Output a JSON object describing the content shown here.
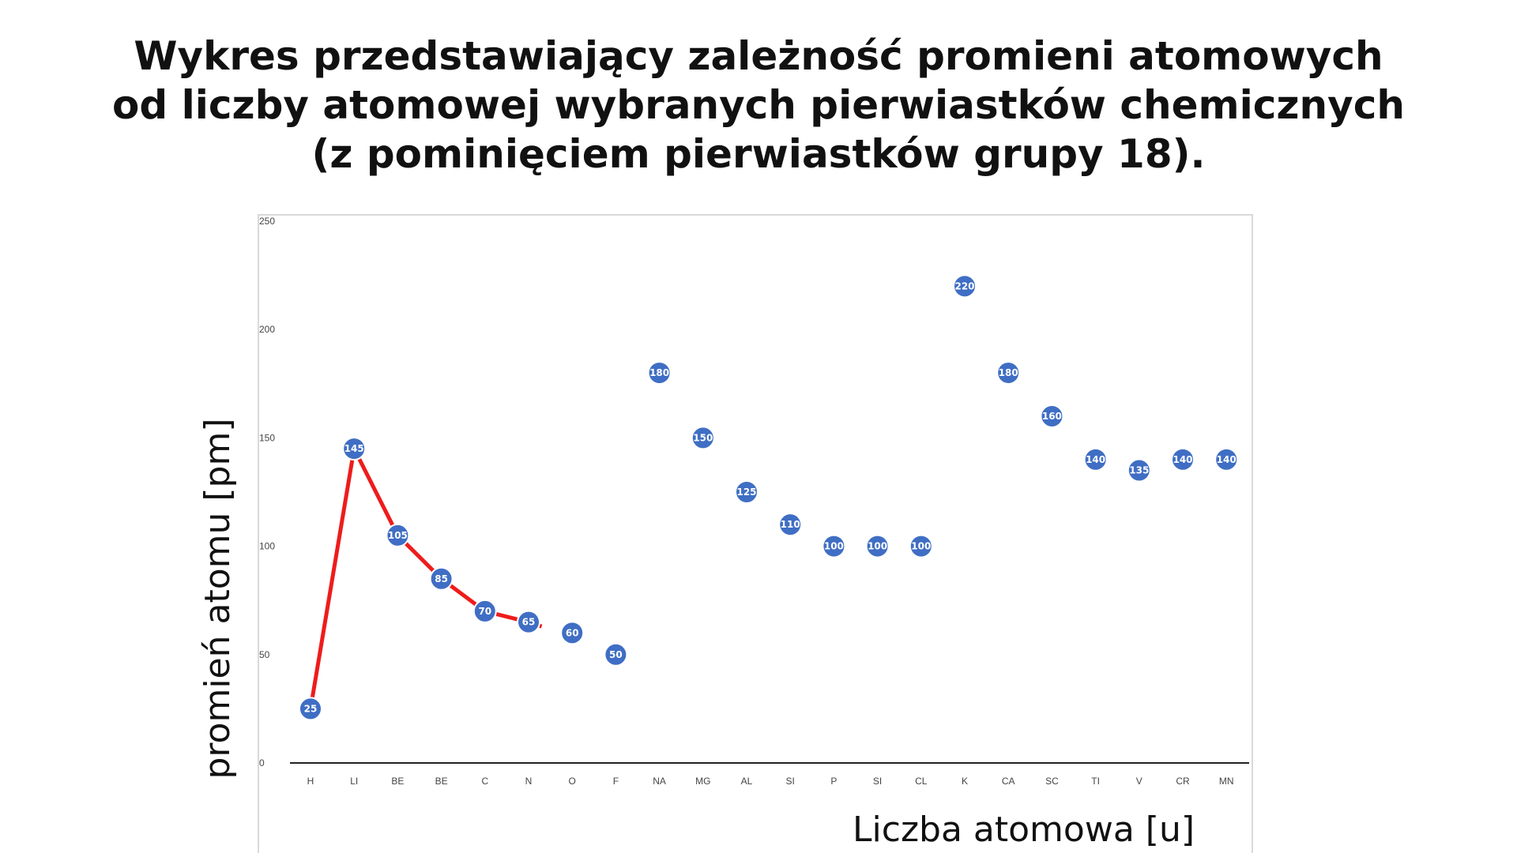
{
  "title_lines": [
    "Wykres przedstawiający zależność promieni atomowych",
    "od liczby atomowej wybranych pierwiastków chemicznych",
    "(z pominięciem pierwiastków grupy 18)."
  ],
  "colors": {
    "point": "#3f6ec4",
    "point_stroke": "#ffffff",
    "line": "#ee1c1c",
    "axis": "#222222"
  },
  "chart_data": {
    "type": "scatter",
    "title": "Wykres przedstawiający zależność promieni atomowych od liczby atomowej wybranych pierwiastków chemicznych (z pominięciem pierwiastków grupy 18).",
    "xlabel": "Liczba atomowa [u]",
    "ylabel": "promień atomu [pm]",
    "ylim": [
      0,
      250
    ],
    "yticks": [
      0,
      50,
      100,
      150,
      200,
      250
    ],
    "grid": false,
    "categories": [
      "H",
      "LI",
      "BE",
      "BE",
      "C",
      "N",
      "O",
      "F",
      "NA",
      "MG",
      "AL",
      "SI",
      "P",
      "SI",
      "CL",
      "K",
      "CA",
      "SC",
      "TI",
      "V",
      "CR",
      "MN"
    ],
    "series": [
      {
        "values": [
          25,
          145,
          105,
          85,
          70,
          65,
          60,
          50,
          180,
          150,
          125,
          110,
          100,
          100,
          100,
          220,
          180,
          160,
          140,
          135,
          140,
          140
        ],
        "data_labels": [
          "25",
          "145",
          "105",
          "85",
          "70",
          "65",
          "60",
          "50",
          "180",
          "150",
          "125",
          "110",
          "100",
          "100",
          "100",
          "220",
          "180",
          "160",
          "140",
          "135",
          "140",
          "140"
        ]
      }
    ],
    "annotation_line": {
      "note": "",
      "points": [
        [
          0,
          25
        ],
        [
          1,
          145
        ],
        [
          2,
          105
        ],
        [
          3,
          85
        ],
        [
          4,
          70
        ],
        [
          5,
          65
        ],
        [
          5.3,
          63
        ]
      ]
    }
  }
}
